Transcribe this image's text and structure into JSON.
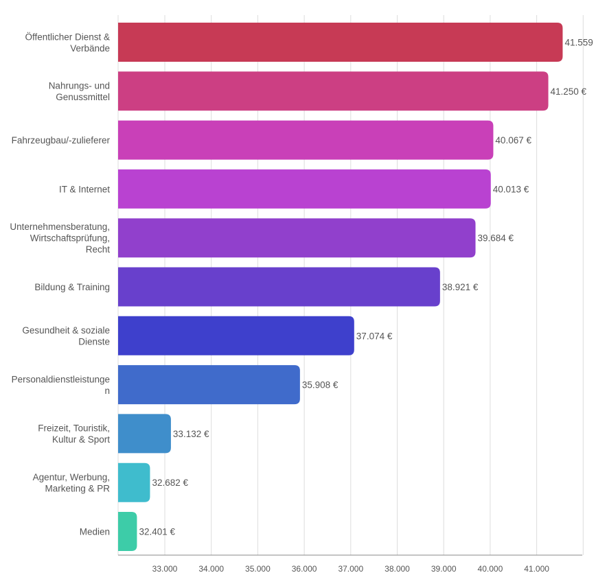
{
  "chart_data": {
    "type": "bar",
    "orientation": "horizontal",
    "title": "",
    "xlabel": "",
    "ylabel": "",
    "xlim": [
      32000,
      42000
    ],
    "grid": true,
    "categories": [
      [
        "Öffentlicher Dienst &",
        "Verbände"
      ],
      [
        "Nahrungs- und",
        "Genussmittel"
      ],
      [
        "Fahrzeugbau/-zulieferer"
      ],
      [
        "IT & Internet"
      ],
      [
        "Unternehmensberatung,",
        "Wirtschaftsprüfung,",
        "Recht"
      ],
      [
        "Bildung & Training"
      ],
      [
        "Gesundheit & soziale",
        "Dienste"
      ],
      [
        "Personaldienstleistunge",
        "n"
      ],
      [
        "Freizeit, Touristik,",
        "Kultur & Sport"
      ],
      [
        "Agentur, Werbung,",
        "Marketing & PR"
      ],
      [
        "Medien"
      ]
    ],
    "values": [
      41559,
      41250,
      40067,
      40013,
      39684,
      38921,
      37074,
      35908,
      33132,
      32682,
      32401
    ],
    "value_labels": [
      "41.559",
      "41.250 €",
      "40.067 €",
      "40.013 €",
      "39.684 €",
      "38.921 €",
      "37.074 €",
      "35.908 €",
      "33.132 €",
      "32.682 €",
      "32.401 €"
    ],
    "ticks": [
      33000,
      34000,
      35000,
      36000,
      37000,
      38000,
      39000,
      40000,
      41000
    ],
    "tick_labels": [
      "33.000",
      "34.000",
      "35.000",
      "36.000",
      "37.000",
      "38.000",
      "39.000",
      "40.000",
      "41.000"
    ],
    "colors": [
      "#c73a55",
      "#cc3f83",
      "#c940b8",
      "#b942d1",
      "#9140cc",
      "#6840cc",
      "#3e40cc",
      "#406bcb",
      "#3f8ecb",
      "#3fbccd",
      "#3dcca8"
    ]
  }
}
